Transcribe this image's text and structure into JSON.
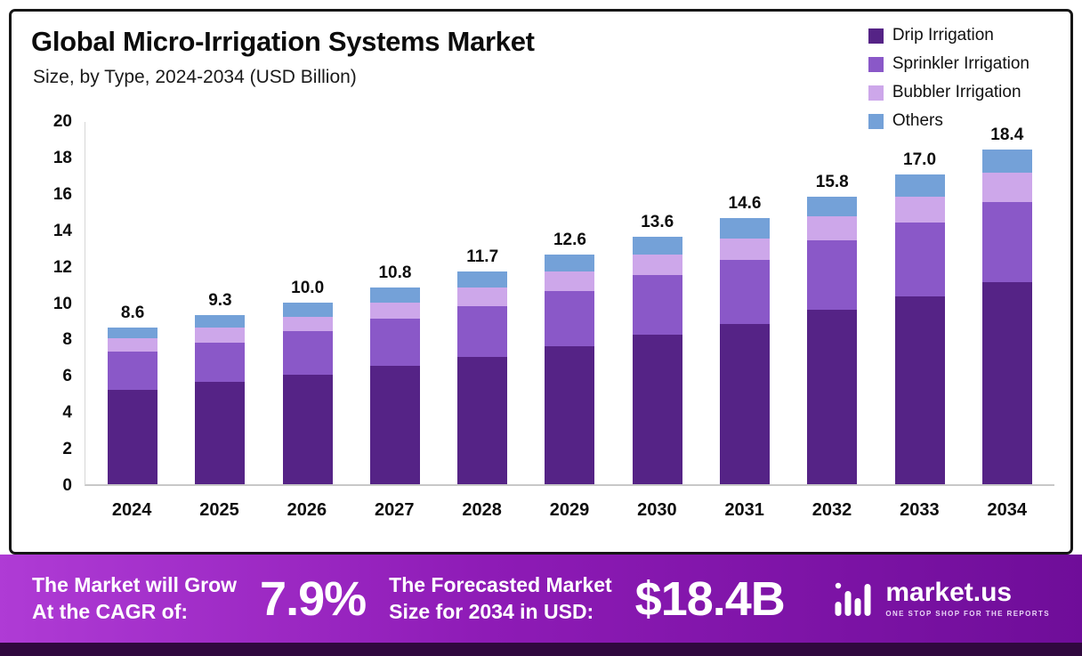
{
  "chart_data": {
    "type": "bar",
    "stacked": true,
    "title": "Global Micro-Irrigation Systems Market",
    "subtitle": "Size, by Type, 2024-2034 (USD Billion)",
    "categories": [
      "2024",
      "2025",
      "2026",
      "2027",
      "2028",
      "2029",
      "2030",
      "2031",
      "2032",
      "2033",
      "2034"
    ],
    "series": [
      {
        "name": "Drip Irrigation",
        "color": "#552386",
        "values": [
          5.2,
          5.6,
          6.0,
          6.5,
          7.0,
          7.6,
          8.2,
          8.8,
          9.6,
          10.3,
          11.1
        ]
      },
      {
        "name": "Sprinkler Irrigation",
        "color": "#8A58C8",
        "values": [
          2.1,
          2.2,
          2.4,
          2.6,
          2.8,
          3.0,
          3.3,
          3.5,
          3.8,
          4.1,
          4.4
        ]
      },
      {
        "name": "Bubbler Irrigation",
        "color": "#CDA7EA",
        "values": [
          0.7,
          0.8,
          0.8,
          0.9,
          1.0,
          1.1,
          1.1,
          1.2,
          1.3,
          1.4,
          1.6
        ]
      },
      {
        "name": "Others",
        "color": "#74A1D8",
        "values": [
          0.6,
          0.7,
          0.8,
          0.8,
          0.9,
          0.9,
          1.0,
          1.1,
          1.1,
          1.2,
          1.3
        ]
      }
    ],
    "totals": [
      8.6,
      9.3,
      10.0,
      10.8,
      11.7,
      12.6,
      13.6,
      14.6,
      15.8,
      17.0,
      18.4
    ],
    "xlabel": "",
    "ylabel": "",
    "ylim": [
      0,
      20
    ],
    "yticks": [
      0,
      2,
      4,
      6,
      8,
      10,
      12,
      14,
      16,
      18,
      20
    ],
    "grid": false,
    "legend_position": "top-right"
  },
  "banner": {
    "cagr_label_line1": "The Market will Grow",
    "cagr_label_line2": "At the CAGR of:",
    "cagr_value": "7.9%",
    "forecast_label_line1": "The Forecasted Market",
    "forecast_label_line2": "Size for 2034 in USD:",
    "forecast_value": "$18.4B",
    "brand": {
      "name": "market.us",
      "tagline": "ONE STOP SHOP FOR THE REPORTS"
    }
  }
}
